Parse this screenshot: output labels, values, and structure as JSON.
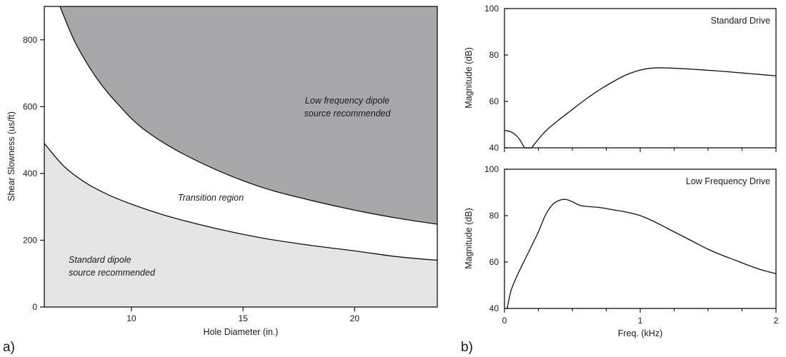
{
  "chart_data": [
    {
      "type": "area",
      "panel_label": "a)",
      "xlabel": "Hole Diameter (in.)",
      "ylabel": "Shear Slowness (us/ft)",
      "xlim": [
        6.1,
        23.7
      ],
      "ylim": [
        0,
        900
      ],
      "xticks": [
        10,
        15,
        20
      ],
      "yticks": [
        0,
        200,
        400,
        600,
        800
      ],
      "grid": false,
      "regions": [
        {
          "name": "low_frequency",
          "label": [
            "Low frequency dipole",
            "source recommended"
          ],
          "color": "#a8a8ab"
        },
        {
          "name": "transition",
          "label": [
            "Transition region"
          ],
          "color": "#ffffff"
        },
        {
          "name": "standard",
          "label": [
            "Standard dipole",
            "source recommended"
          ],
          "color": "#e5e5e6"
        }
      ],
      "series": [
        {
          "boundary": "upper",
          "x": [
            6.8,
            7.5,
            8.5,
            9.5,
            10.5,
            12,
            14,
            16,
            18,
            20,
            22,
            23.7
          ],
          "y": [
            900,
            790,
            680,
            600,
            535,
            470,
            405,
            355,
            320,
            290,
            265,
            248
          ]
        },
        {
          "boundary": "lower",
          "x": [
            6.1,
            7,
            8,
            9,
            10,
            11,
            12,
            14,
            16,
            18,
            20,
            22,
            23.7
          ],
          "y": [
            490,
            420,
            370,
            335,
            308,
            285,
            265,
            232,
            205,
            185,
            168,
            150,
            140
          ]
        }
      ]
    },
    {
      "type": "line",
      "panel_label": "b)",
      "title": "Standard Drive",
      "ylabel": "Magnitude (dB)",
      "xlim": [
        0,
        2
      ],
      "ylim": [
        40,
        100
      ],
      "yticks": [
        40,
        60,
        80,
        100
      ],
      "series": [
        {
          "x": [
            0,
            0.05,
            0.1,
            0.14,
            0.15,
            0.2,
            0.21,
            0.3,
            0.4,
            0.5,
            0.6,
            0.7,
            0.8,
            0.9,
            1.0,
            1.1,
            1.2,
            1.4,
            1.6,
            1.8,
            2.0
          ],
          "y": [
            47.5,
            46.8,
            44.5,
            40.8,
            40,
            40,
            40.8,
            47,
            52,
            56.5,
            61,
            65,
            68.5,
            71.5,
            73.5,
            74.4,
            74.4,
            73.8,
            73,
            72,
            71
          ]
        }
      ]
    },
    {
      "type": "line",
      "title": "Low Frequency Drive",
      "ylabel": "Magnitude (dB)",
      "xlabel": "Freq. (kHz)",
      "xlim": [
        0,
        2
      ],
      "ylim": [
        40,
        100
      ],
      "xticks": [
        0,
        1,
        2
      ],
      "yticks": [
        40,
        60,
        80,
        100
      ],
      "series": [
        {
          "x": [
            0.02,
            0.05,
            0.1,
            0.15,
            0.2,
            0.25,
            0.3,
            0.35,
            0.4,
            0.45,
            0.5,
            0.55,
            0.6,
            0.7,
            0.8,
            0.9,
            1.0,
            1.1,
            1.2,
            1.3,
            1.4,
            1.5,
            1.6,
            1.7,
            1.8,
            1.9,
            2.0
          ],
          "y": [
            40,
            48,
            55,
            61,
            67,
            73,
            80,
            84.5,
            86.5,
            87,
            86,
            84.5,
            84,
            83.5,
            82.5,
            81.5,
            80,
            77.5,
            74.5,
            71.5,
            68.5,
            65.5,
            63,
            60.8,
            58.5,
            56.5,
            55
          ]
        }
      ]
    }
  ]
}
